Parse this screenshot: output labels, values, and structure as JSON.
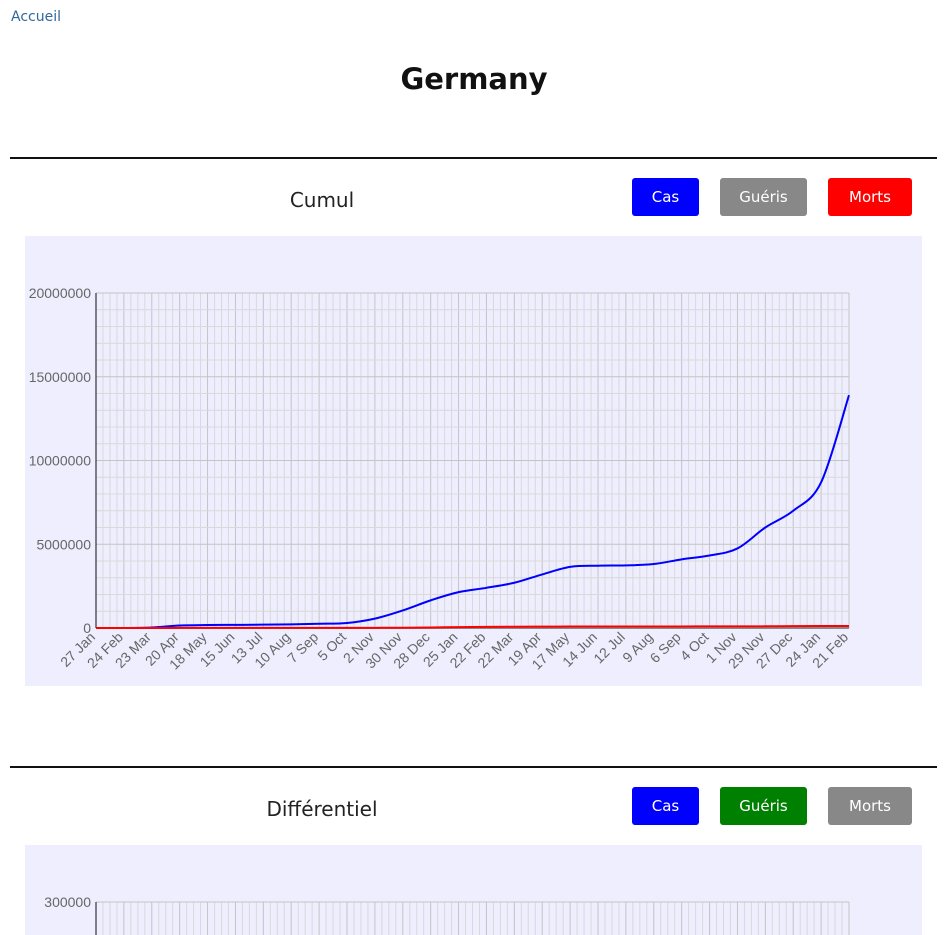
{
  "nav": {
    "home_label": "Accueil"
  },
  "page": {
    "title": "Germany"
  },
  "sections": [
    {
      "title": "Cumul",
      "buttons": [
        {
          "label": "Cas",
          "color": "#0000FF"
        },
        {
          "label": "Guéris",
          "color": "#888888"
        },
        {
          "label": "Morts",
          "color": "#FF0000"
        }
      ]
    },
    {
      "title": "Différentiel",
      "buttons": [
        {
          "label": "Cas",
          "color": "#0000FF"
        },
        {
          "label": "Guéris",
          "color": "#008000"
        },
        {
          "label": "Morts",
          "color": "#888888"
        }
      ]
    }
  ],
  "chart_data": [
    {
      "type": "line",
      "title": "",
      "xlabel": "",
      "ylabel": "",
      "grid": true,
      "background": "#EEEEFF",
      "ylim": [
        0,
        20000000
      ],
      "yticks": [
        0,
        5000000,
        10000000,
        15000000,
        20000000
      ],
      "x": [
        "27 Jan",
        "24 Feb",
        "23 Mar",
        "20 Apr",
        "18 May",
        "15 Jun",
        "13 Jul",
        "10 Aug",
        "7 Sep",
        "5 Oct",
        "2 Nov",
        "30 Nov",
        "28 Dec",
        "25 Jan",
        "22 Feb",
        "22 Mar",
        "19 Apr",
        "17 May",
        "14 Jun",
        "12 Jul",
        "9 Aug",
        "6 Sep",
        "4 Oct",
        "1 Nov",
        "29 Nov",
        "27 Dec",
        "24 Jan",
        "21 Feb"
      ],
      "series": [
        {
          "color": "#0000FF",
          "values": [
            0,
            16,
            30000,
            148000,
            178000,
            187000,
            198000,
            217000,
            253000,
            300000,
            560000,
            1050000,
            1650000,
            2140000,
            2400000,
            2700000,
            3200000,
            3650000,
            3720000,
            3740000,
            3820000,
            4100000,
            4330000,
            4750000,
            6000000,
            7000000,
            8700000,
            13900000
          ]
        },
        {
          "color": "#888888",
          "values": [
            0,
            0,
            0,
            0,
            0,
            0,
            0,
            0,
            0,
            0,
            0,
            0,
            0,
            0,
            0,
            0,
            0,
            0,
            0,
            0,
            0,
            0,
            0,
            0,
            0,
            0,
            0,
            0
          ]
        },
        {
          "color": "#FF0000",
          "values": [
            0,
            0,
            1000,
            4500,
            8300,
            8900,
            9100,
            9200,
            9400,
            9600,
            10900,
            16600,
            32000,
            53000,
            68000,
            75000,
            81000,
            87000,
            90000,
            91000,
            92000,
            93000,
            94500,
            97500,
            101000,
            112000,
            117000,
            121000
          ]
        }
      ]
    },
    {
      "type": "line",
      "title": "",
      "grid": true,
      "background": "#EEEEFF",
      "yticks": [
        300000
      ],
      "series": []
    }
  ]
}
